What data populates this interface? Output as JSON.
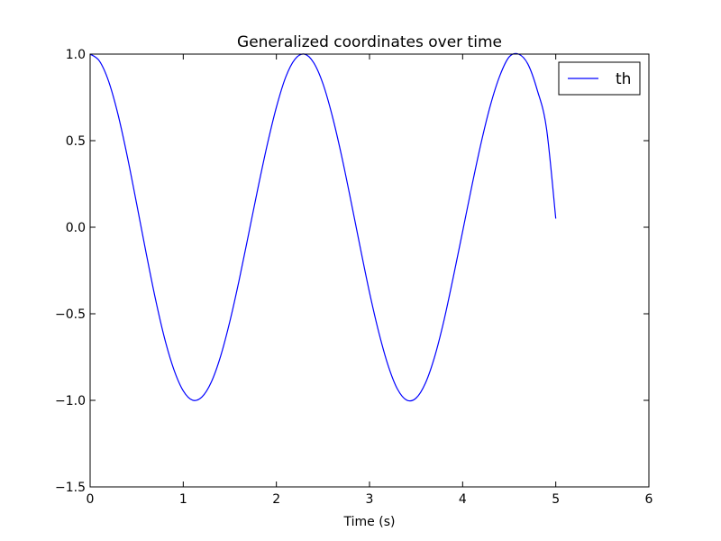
{
  "chart_data": {
    "type": "line",
    "title": "Generalized coordinates over time",
    "xlabel": "Time (s)",
    "ylabel": "",
    "xlim": [
      0,
      6
    ],
    "ylim": [
      -1.5,
      1.0
    ],
    "xticks": [
      0,
      1,
      2,
      3,
      4,
      5,
      6
    ],
    "xtick_labels": [
      "0",
      "1",
      "2",
      "3",
      "4",
      "5",
      "6"
    ],
    "yticks": [
      -1.5,
      -1.0,
      -0.5,
      0.0,
      0.5,
      1.0
    ],
    "ytick_labels": [
      "−1.5",
      "−1.0",
      "−0.5",
      "0.0",
      "0.5",
      "1.0"
    ],
    "grid": false,
    "legend": {
      "position": "top-right"
    },
    "series": [
      {
        "name": "th",
        "color": "#0000ff",
        "x": [
          0,
          0.1,
          0.2,
          0.3,
          0.4,
          0.5,
          0.6,
          0.7,
          0.8,
          0.9,
          1.0,
          1.1,
          1.2,
          1.3,
          1.4,
          1.5,
          1.6,
          1.7,
          1.8,
          1.9,
          2.0,
          2.1,
          2.2,
          2.3,
          2.4,
          2.5,
          2.6,
          2.7,
          2.8,
          2.9,
          3.0,
          3.1,
          3.2,
          3.3,
          3.4,
          3.5,
          3.6,
          3.7,
          3.8,
          3.9,
          4.0,
          4.1,
          4.2,
          4.3,
          4.4,
          4.5,
          4.6,
          4.7,
          4.8,
          4.9,
          5.0
        ],
        "y": [
          1.0,
          0.96,
          0.841,
          0.65,
          0.407,
          0.134,
          -0.145,
          -0.411,
          -0.643,
          -0.823,
          -0.945,
          -0.999,
          -0.981,
          -0.896,
          -0.747,
          -0.545,
          -0.306,
          -0.044,
          0.221,
          0.472,
          0.693,
          0.867,
          0.971,
          1.0,
          0.951,
          0.829,
          0.643,
          0.413,
          0.153,
          -0.116,
          -0.377,
          -0.608,
          -0.799,
          -0.935,
          -0.999,
          -0.987,
          -0.901,
          -0.747,
          -0.537,
          -0.287,
          -0.024,
          0.241,
          0.491,
          0.708,
          0.876,
          0.984,
          1.0,
          0.943,
          0.794,
          0.572,
          0.05
        ]
      }
    ]
  }
}
